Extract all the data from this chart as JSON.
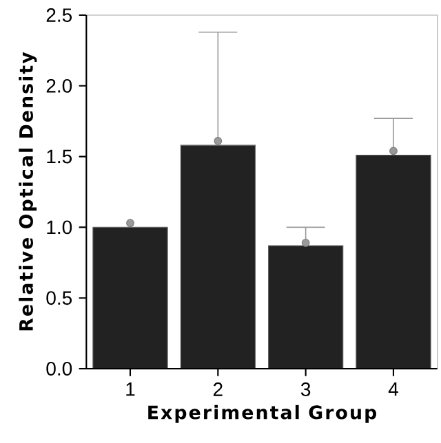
{
  "chart_data": {
    "type": "bar",
    "xlabel": "Experimental Group",
    "ylabel": "Relative Optical Density",
    "categories": [
      "1",
      "2",
      "3",
      "4"
    ],
    "series": [
      {
        "color": "#222222",
        "values": [
          1.0,
          1.58,
          0.87,
          1.51
        ]
      },
      {
        "type": "scatter",
        "color": "#999999",
        "x": [
          "1",
          "2",
          "3",
          "4"
        ],
        "values": [
          1.03,
          1.61,
          0.89,
          1.54
        ],
        "errors": [
          null,
          [
            1.61,
            2.38
          ],
          [
            0.89,
            1.0
          ],
          [
            1.54,
            1.77
          ]
        ]
      }
    ],
    "ylim": [
      0,
      2.5
    ],
    "yticks": [
      {
        "value": 0,
        "label": "0.0"
      },
      {
        "value": 0.5,
        "label": "0.5"
      },
      {
        "value": 1,
        "label": "1.0"
      },
      {
        "value": 1.5,
        "label": "1.5"
      },
      {
        "value": 2,
        "label": "2.0"
      },
      {
        "value": 2.5,
        "label": "2.5"
      }
    ]
  }
}
